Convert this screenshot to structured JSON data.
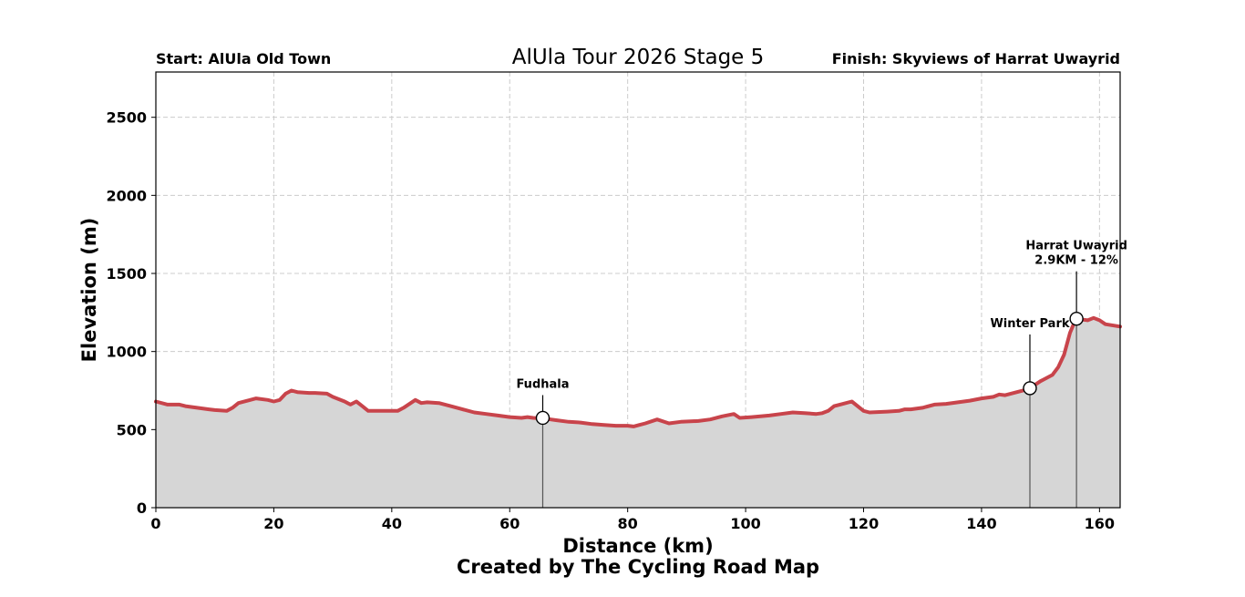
{
  "chart_data": {
    "type": "area",
    "title": "AlUla Tour 2026 Stage 5",
    "start_label": "Start: AlUla Old Town",
    "finish_label": "Finish: Skyviews of Harrat Uwayrid",
    "xlabel": "Distance (km)",
    "ylabel": "Elevation (m)",
    "footer": "Created by The Cycling Road Map",
    "xlim": [
      0,
      163.5
    ],
    "ylim": [
      0,
      2790
    ],
    "xticks": [
      0,
      20,
      40,
      60,
      80,
      100,
      120,
      140,
      160
    ],
    "yticks": [
      0,
      500,
      1000,
      1500,
      2000,
      2500
    ],
    "grid": true,
    "line_color": "#c8444b",
    "fill_color": "#d6d6d6",
    "series": [
      {
        "name": "Elevation",
        "x": [
          0,
          2,
          4,
          5,
          7,
          9,
          10,
          12,
          13,
          14,
          16,
          17,
          19,
          20,
          21,
          22,
          23,
          24,
          26,
          27,
          29,
          30,
          32,
          33,
          34,
          35,
          36,
          38,
          40,
          41,
          42,
          44,
          45,
          46,
          48,
          50,
          52,
          54,
          56,
          58,
          60,
          62,
          63,
          64,
          66,
          68,
          70,
          72,
          74,
          76,
          78,
          80,
          81,
          82,
          83,
          85,
          87,
          89,
          92,
          94,
          96,
          98,
          99,
          101,
          104,
          106,
          108,
          110,
          112,
          113,
          114,
          115,
          116,
          118,
          120,
          121,
          124,
          126,
          127,
          128,
          130,
          132,
          134,
          136,
          138,
          140,
          142,
          143,
          144,
          146,
          148,
          150,
          152,
          153,
          154,
          155,
          156,
          158,
          159,
          160,
          161,
          163.5
        ],
        "y": [
          680,
          660,
          660,
          650,
          640,
          630,
          625,
          620,
          640,
          670,
          690,
          700,
          690,
          680,
          690,
          730,
          750,
          740,
          735,
          735,
          730,
          710,
          680,
          660,
          680,
          650,
          620,
          620,
          620,
          620,
          640,
          690,
          670,
          675,
          670,
          650,
          630,
          610,
          600,
          590,
          580,
          575,
          580,
          575,
          570,
          560,
          550,
          545,
          535,
          530,
          525,
          525,
          520,
          530,
          540,
          565,
          540,
          550,
          555,
          565,
          585,
          600,
          575,
          580,
          590,
          600,
          610,
          605,
          600,
          605,
          620,
          650,
          660,
          680,
          620,
          610,
          615,
          620,
          630,
          630,
          640,
          660,
          665,
          675,
          685,
          700,
          710,
          725,
          720,
          740,
          760,
          810,
          850,
          900,
          980,
          1120,
          1210,
          1200,
          1215,
          1200,
          1175,
          1160
        ]
      }
    ],
    "annotations": [
      {
        "label": "Fudhala",
        "x": 65.6,
        "y": 575
      },
      {
        "label": "Winter Park",
        "x": 148.2,
        "y": 765
      },
      {
        "label": "Harrat Uwayrid",
        "sublabel": "2.9KM - 12%",
        "x": 156.1,
        "y": 1210
      }
    ]
  }
}
